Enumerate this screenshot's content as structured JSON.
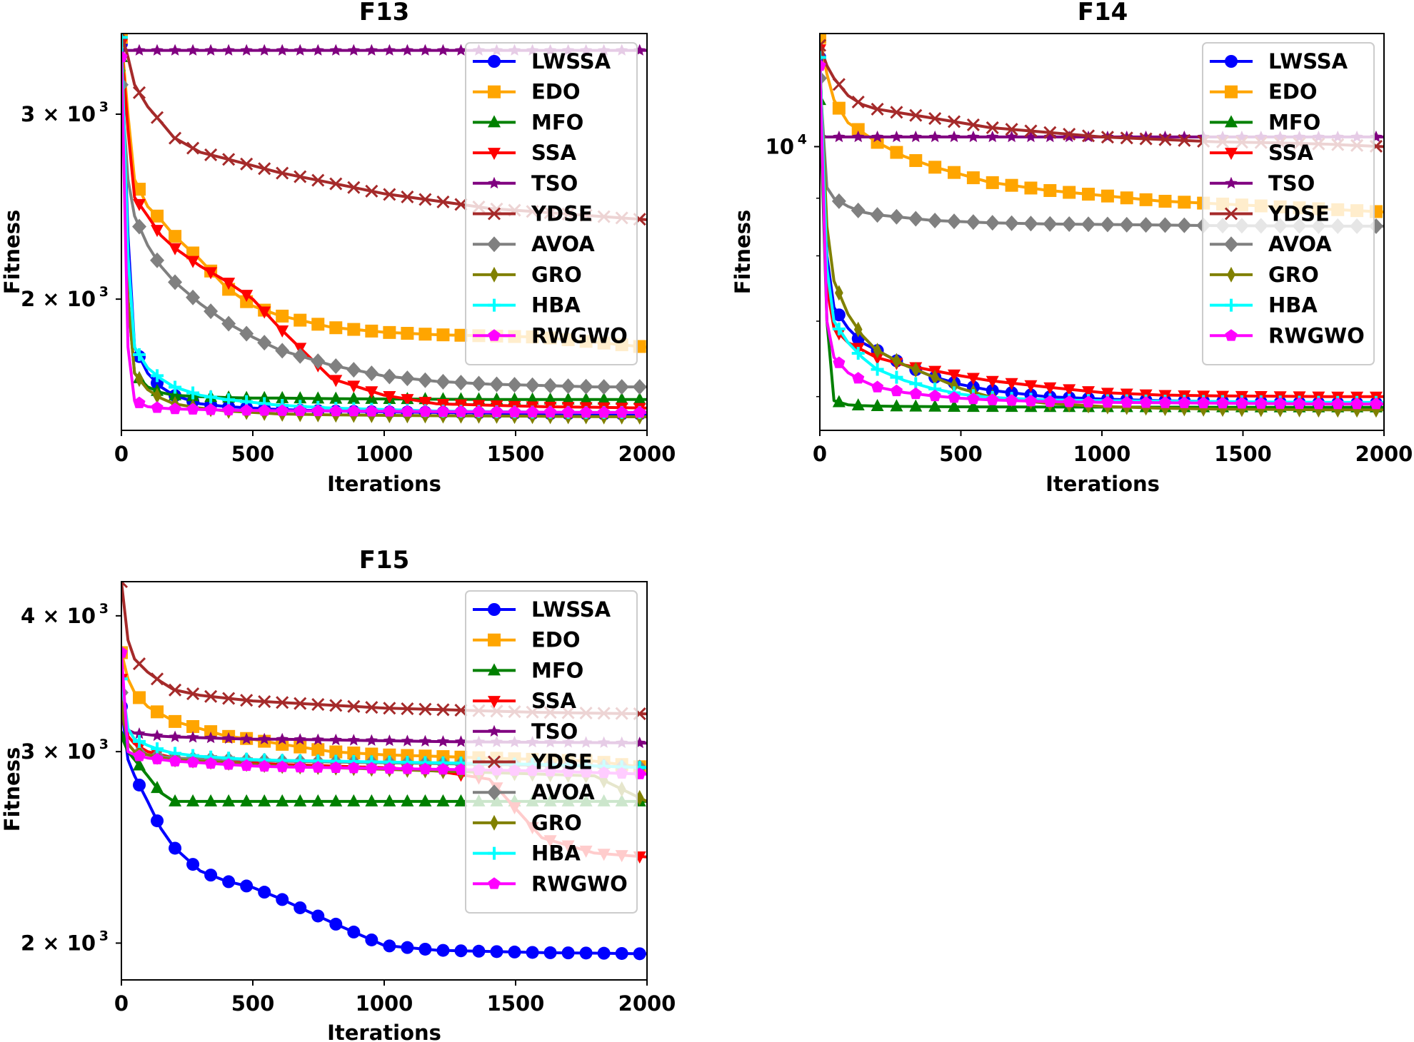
{
  "series_styles": [
    {
      "name": "LWSSA",
      "color": "#0000ff",
      "marker": "circle"
    },
    {
      "name": "EDO",
      "color": "#ffa500",
      "marker": "square"
    },
    {
      "name": "MFO",
      "color": "#008000",
      "marker": "triangle-up"
    },
    {
      "name": "SSA",
      "color": "#ff0000",
      "marker": "triangle-down"
    },
    {
      "name": "TSO",
      "color": "#800080",
      "marker": "star"
    },
    {
      "name": "YDSE",
      "color": "#a52a2a",
      "marker": "x"
    },
    {
      "name": "AVOA",
      "color": "#808080",
      "marker": "diamond"
    },
    {
      "name": "GRO",
      "color": "#808000",
      "marker": "thin-diamond"
    },
    {
      "name": "HBA",
      "color": "#00ffff",
      "marker": "plus"
    },
    {
      "name": "RWGWO",
      "color": "#ff00ff",
      "marker": "pentagon"
    }
  ],
  "chart_data": [
    {
      "type": "line",
      "title": "F13",
      "xlabel": "Iterations",
      "ylabel": "Fitness",
      "xlim": [
        0,
        2000
      ],
      "ylim": [
        1500,
        3580
      ],
      "yscale": "log",
      "xticks": [
        "0",
        "500",
        "1000",
        "1500",
        "2000"
      ],
      "yticks": [
        {
          "value": 3000,
          "label": "3 × 10",
          "exp": "3"
        },
        {
          "value": 2000,
          "label": "2 × 10",
          "exp": "3"
        }
      ],
      "legend": "top-right",
      "x": [
        0,
        25,
        50,
        100,
        150,
        200,
        300,
        400,
        500,
        600,
        800,
        1000,
        1200,
        1400,
        1600,
        1800,
        2000
      ],
      "series": [
        {
          "name": "LWSSA",
          "values": [
            3500,
            2300,
            1800,
            1700,
            1650,
            1620,
            1590,
            1580,
            1575,
            1570,
            1565,
            1562,
            1560,
            1558,
            1556,
            1555,
            1555
          ]
        },
        {
          "name": "EDO",
          "values": [
            3550,
            3000,
            2600,
            2450,
            2380,
            2300,
            2180,
            2050,
            1970,
            1930,
            1880,
            1860,
            1850,
            1845,
            1840,
            1820,
            1800
          ]
        },
        {
          "name": "MFO",
          "values": [
            3400,
            2000,
            1700,
            1650,
            1630,
            1620,
            1615,
            1612,
            1610,
            1610,
            1608,
            1607,
            1606,
            1605,
            1605,
            1605,
            1605
          ]
        },
        {
          "name": "SSA",
          "values": [
            3500,
            2900,
            2500,
            2400,
            2300,
            2240,
            2150,
            2080,
            2000,
            1880,
            1680,
            1620,
            1590,
            1585,
            1580,
            1578,
            1575
          ]
        },
        {
          "name": "TSO",
          "values": [
            3450,
            3450,
            3450,
            3450,
            3450,
            3450,
            3450,
            3450,
            3450,
            3450,
            3450,
            3450,
            3450,
            3450,
            3450,
            3450,
            3450
          ]
        },
        {
          "name": "YDSE",
          "values": [
            3580,
            3400,
            3200,
            3050,
            2950,
            2850,
            2760,
            2720,
            2680,
            2640,
            2580,
            2520,
            2480,
            2440,
            2420,
            2400,
            2380
          ]
        },
        {
          "name": "AVOA",
          "values": [
            3200,
            2600,
            2400,
            2250,
            2150,
            2080,
            1980,
            1900,
            1840,
            1790,
            1730,
            1690,
            1670,
            1660,
            1655,
            1650,
            1650
          ]
        },
        {
          "name": "GRO",
          "values": [
            3300,
            2000,
            1700,
            1640,
            1610,
            1590,
            1575,
            1565,
            1560,
            1555,
            1552,
            1550,
            1549,
            1548,
            1547,
            1546,
            1545
          ]
        },
        {
          "name": "HBA",
          "values": [
            3550,
            2200,
            1800,
            1720,
            1680,
            1650,
            1620,
            1605,
            1595,
            1585,
            1575,
            1570,
            1565,
            1563,
            1561,
            1560,
            1560
          ]
        },
        {
          "name": "RWGWO",
          "values": [
            3400,
            1800,
            1600,
            1580,
            1575,
            1572,
            1570,
            1568,
            1567,
            1566,
            1565,
            1564,
            1563,
            1562,
            1561,
            1560,
            1560
          ]
        }
      ]
    },
    {
      "type": "line",
      "title": "F14",
      "xlabel": "Iterations",
      "ylabel": "Fitness",
      "xlim": [
        0,
        2000
      ],
      "ylim": [
        5600,
        12600
      ],
      "yscale": "log",
      "xticks": [
        "0",
        "500",
        "1000",
        "1500",
        "2000"
      ],
      "yticks": [
        {
          "value": 10000,
          "label": "10",
          "exp": "4"
        }
      ],
      "legend": "top-right",
      "x": [
        0,
        25,
        50,
        100,
        150,
        200,
        300,
        400,
        500,
        600,
        800,
        1000,
        1200,
        1400,
        1600,
        1800,
        2000
      ],
      "series": [
        {
          "name": "LWSSA",
          "values": [
            12000,
            8000,
            7200,
            6900,
            6700,
            6600,
            6400,
            6250,
            6150,
            6080,
            6000,
            5970,
            5950,
            5940,
            5930,
            5920,
            5920
          ]
        },
        {
          "name": "EDO",
          "values": [
            12500,
            11600,
            11000,
            10500,
            10300,
            10100,
            9800,
            9600,
            9450,
            9300,
            9150,
            9050,
            8950,
            8900,
            8850,
            8800,
            8750
          ]
        },
        {
          "name": "MFO",
          "values": [
            11000,
            7000,
            5950,
            5900,
            5890,
            5885,
            5880,
            5878,
            5876,
            5875,
            5874,
            5873,
            5872,
            5871,
            5870,
            5870,
            5870
          ]
        },
        {
          "name": "SSA",
          "values": [
            12200,
            7500,
            6900,
            6700,
            6600,
            6500,
            6400,
            6330,
            6260,
            6200,
            6120,
            6050,
            6020,
            6010,
            6005,
            6000,
            6000
          ]
        },
        {
          "name": "TSO",
          "values": [
            10200,
            10200,
            10200,
            10200,
            10200,
            10200,
            10200,
            10200,
            10200,
            10200,
            10200,
            10200,
            10200,
            10200,
            10200,
            10200,
            10200
          ]
        },
        {
          "name": "YDSE",
          "values": [
            12300,
            11800,
            11500,
            11100,
            10900,
            10800,
            10700,
            10600,
            10500,
            10400,
            10300,
            10200,
            10150,
            10100,
            10080,
            10050,
            10000
          ]
        },
        {
          "name": "AVOA",
          "values": [
            11500,
            9200,
            9000,
            8850,
            8750,
            8700,
            8650,
            8600,
            8580,
            8560,
            8540,
            8530,
            8520,
            8510,
            8505,
            8500,
            8500
          ]
        },
        {
          "name": "GRO",
          "values": [
            11800,
            8500,
            7600,
            7100,
            6800,
            6600,
            6400,
            6250,
            6100,
            6000,
            5920,
            5880,
            5860,
            5850,
            5845,
            5840,
            5840
          ]
        },
        {
          "name": "HBA",
          "values": [
            12000,
            7800,
            7000,
            6700,
            6500,
            6350,
            6200,
            6100,
            6030,
            5990,
            5960,
            5950,
            5945,
            5940,
            5935,
            5930,
            5930
          ]
        },
        {
          "name": "RWGWO",
          "values": [
            11800,
            7000,
            6500,
            6300,
            6200,
            6120,
            6050,
            6010,
            5980,
            5960,
            5940,
            5930,
            5925,
            5920,
            5915,
            5910,
            5910
          ]
        }
      ]
    },
    {
      "type": "line",
      "title": "F15",
      "xlabel": "Iterations",
      "ylabel": "Fitness",
      "xlim": [
        0,
        2000
      ],
      "ylim": [
        1850,
        4300
      ],
      "yscale": "log",
      "xticks": [
        "0",
        "500",
        "1000",
        "1500",
        "2000"
      ],
      "yticks": [
        {
          "value": 4000,
          "label": "4 × 10",
          "exp": "3"
        },
        {
          "value": 3000,
          "label": "3 × 10",
          "exp": "3"
        },
        {
          "value": 2000,
          "label": "2 × 10",
          "exp": "3"
        }
      ],
      "legend": "top-right",
      "x": [
        0,
        25,
        50,
        100,
        150,
        200,
        300,
        400,
        500,
        600,
        800,
        1000,
        1200,
        1400,
        1600,
        1800,
        2000
      ],
      "series": [
        {
          "name": "LWSSA",
          "values": [
            3300,
            2950,
            2850,
            2700,
            2550,
            2450,
            2330,
            2280,
            2250,
            2200,
            2090,
            1990,
            1970,
            1965,
            1960,
            1958,
            1955
          ]
        },
        {
          "name": "EDO",
          "values": [
            3700,
            3500,
            3400,
            3300,
            3250,
            3200,
            3150,
            3100,
            3080,
            3050,
            3000,
            2980,
            2970,
            2960,
            2950,
            2940,
            2900
          ]
        },
        {
          "name": "MFO",
          "values": [
            3100,
            3000,
            2950,
            2850,
            2750,
            2700,
            2700,
            2700,
            2700,
            2700,
            2700,
            2700,
            2700,
            2700,
            2700,
            2700,
            2700
          ]
        },
        {
          "name": "SSA",
          "values": [
            3500,
            3100,
            3050,
            3000,
            2980,
            2960,
            2950,
            2940,
            2930,
            2920,
            2910,
            2900,
            2880,
            2830,
            2500,
            2420,
            2400
          ]
        },
        {
          "name": "TSO",
          "values": [
            3200,
            3140,
            3120,
            3110,
            3100,
            3095,
            3090,
            3085,
            3080,
            3080,
            3075,
            3070,
            3065,
            3062,
            3060,
            3058,
            3055
          ]
        },
        {
          "name": "YDSE",
          "values": [
            4300,
            3800,
            3650,
            3550,
            3480,
            3420,
            3380,
            3360,
            3340,
            3330,
            3310,
            3290,
            3280,
            3270,
            3260,
            3255,
            3250
          ]
        },
        {
          "name": "AVOA",
          "values": [
            3400,
            3050,
            3000,
            2980,
            2970,
            2960,
            2955,
            2950,
            2945,
            2940,
            2935,
            2930,
            2925,
            2920,
            2915,
            2910,
            2900
          ]
        },
        {
          "name": "GRO",
          "values": [
            3300,
            3050,
            3000,
            2980,
            2960,
            2950,
            2940,
            2930,
            2920,
            2910,
            2900,
            2890,
            2880,
            2870,
            2860,
            2850,
            2700
          ]
        },
        {
          "name": "HBA",
          "values": [
            3500,
            3150,
            3080,
            3040,
            3010,
            2990,
            2970,
            2960,
            2950,
            2945,
            2940,
            2935,
            2930,
            2925,
            2920,
            2910,
            2900
          ]
        },
        {
          "name": "RWGWO",
          "values": [
            3700,
            3000,
            2980,
            2960,
            2950,
            2940,
            2930,
            2920,
            2910,
            2905,
            2900,
            2895,
            2890,
            2885,
            2880,
            2870,
            2860
          ]
        }
      ]
    }
  ]
}
